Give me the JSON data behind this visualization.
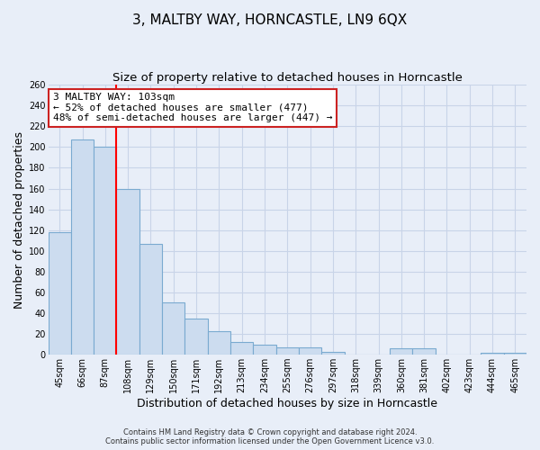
{
  "title": "3, MALTBY WAY, HORNCASTLE, LN9 6QX",
  "subtitle": "Size of property relative to detached houses in Horncastle",
  "xlabel": "Distribution of detached houses by size in Horncastle",
  "ylabel": "Number of detached properties",
  "categories": [
    "45sqm",
    "66sqm",
    "87sqm",
    "108sqm",
    "129sqm",
    "150sqm",
    "171sqm",
    "192sqm",
    "213sqm",
    "234sqm",
    "255sqm",
    "276sqm",
    "297sqm",
    "318sqm",
    "339sqm",
    "360sqm",
    "381sqm",
    "402sqm",
    "423sqm",
    "444sqm",
    "465sqm"
  ],
  "values": [
    118,
    207,
    200,
    160,
    107,
    50,
    35,
    23,
    12,
    10,
    7,
    7,
    3,
    0,
    0,
    6,
    6,
    0,
    0,
    2,
    2
  ],
  "bar_color": "#ccdcef",
  "bar_edge_color": "#7aaad0",
  "red_line_index": 3,
  "ylim": [
    0,
    260
  ],
  "yticks": [
    0,
    20,
    40,
    60,
    80,
    100,
    120,
    140,
    160,
    180,
    200,
    220,
    240,
    260
  ],
  "annotation_title": "3 MALTBY WAY: 103sqm",
  "annotation_line1": "← 52% of detached houses are smaller (477)",
  "annotation_line2": "48% of semi-detached houses are larger (447) →",
  "footer_line1": "Contains HM Land Registry data © Crown copyright and database right 2024.",
  "footer_line2": "Contains public sector information licensed under the Open Government Licence v3.0.",
  "background_color": "#e8eef8",
  "grid_color": "#c8d4e8",
  "title_fontsize": 11,
  "subtitle_fontsize": 9.5,
  "axis_label_fontsize": 9,
  "tick_fontsize": 7,
  "annotation_fontsize": 8,
  "footer_fontsize": 6
}
